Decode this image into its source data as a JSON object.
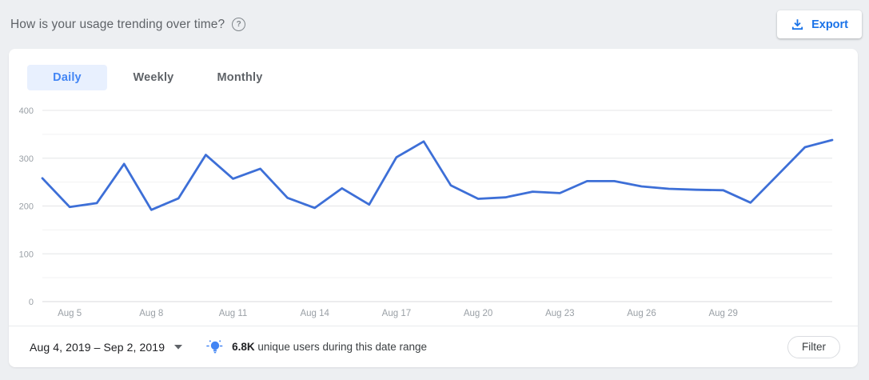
{
  "header": {
    "title": "How is your usage trending over time?",
    "help_glyph": "?",
    "export_label": "Export"
  },
  "tabs": [
    {
      "label": "Daily",
      "active": true
    },
    {
      "label": "Weekly",
      "active": false
    },
    {
      "label": "Monthly",
      "active": false
    }
  ],
  "chart_data": {
    "type": "line",
    "title": "",
    "xlabel": "",
    "ylabel": "",
    "x": [
      "Aug 4",
      "Aug 5",
      "Aug 6",
      "Aug 7",
      "Aug 8",
      "Aug 9",
      "Aug 10",
      "Aug 11",
      "Aug 12",
      "Aug 13",
      "Aug 14",
      "Aug 15",
      "Aug 16",
      "Aug 17",
      "Aug 18",
      "Aug 19",
      "Aug 20",
      "Aug 21",
      "Aug 22",
      "Aug 23",
      "Aug 24",
      "Aug 25",
      "Aug 26",
      "Aug 27",
      "Aug 28",
      "Aug 29",
      "Aug 30",
      "Aug 31",
      "Sep 1",
      "Sep 2"
    ],
    "series": [
      {
        "name": "daily unique users",
        "values": [
          258,
          198,
          206,
          288,
          192,
          216,
          307,
          257,
          278,
          217,
          196,
          237,
          203,
          302,
          335,
          243,
          215,
          218,
          230,
          227,
          252,
          252,
          241,
          236,
          234,
          233,
          207,
          265,
          323,
          338
        ]
      }
    ],
    "ylim": [
      0,
      400
    ],
    "yticks": [
      0,
      100,
      200,
      300,
      400
    ],
    "minor_grid_step": 50,
    "major_grid_step": 100,
    "x_tick_labels": [
      "Aug 5",
      "Aug 8",
      "Aug 11",
      "Aug 14",
      "Aug 17",
      "Aug 20",
      "Aug 23",
      "Aug 26",
      "Aug 29"
    ],
    "x_tick_day_indices": [
      1,
      4,
      7,
      10,
      13,
      16,
      19,
      22,
      25
    ],
    "grid": true,
    "legend": "none",
    "line_color": "#3d6fd7"
  },
  "footer": {
    "date_range": "Aug 4, 2019 – Sep 2, 2019",
    "insight_value": "6.8K",
    "insight_text": "unique users during this date range",
    "filter_label": "Filter"
  },
  "colors": {
    "accent_blue": "#1a73e8",
    "tab_active_text": "#4285f4",
    "tab_active_bg": "#e8f0fe",
    "axis_label": "#9aa0a6",
    "page_bg": "#edeff2",
    "insight_icon": "#4285f4"
  }
}
